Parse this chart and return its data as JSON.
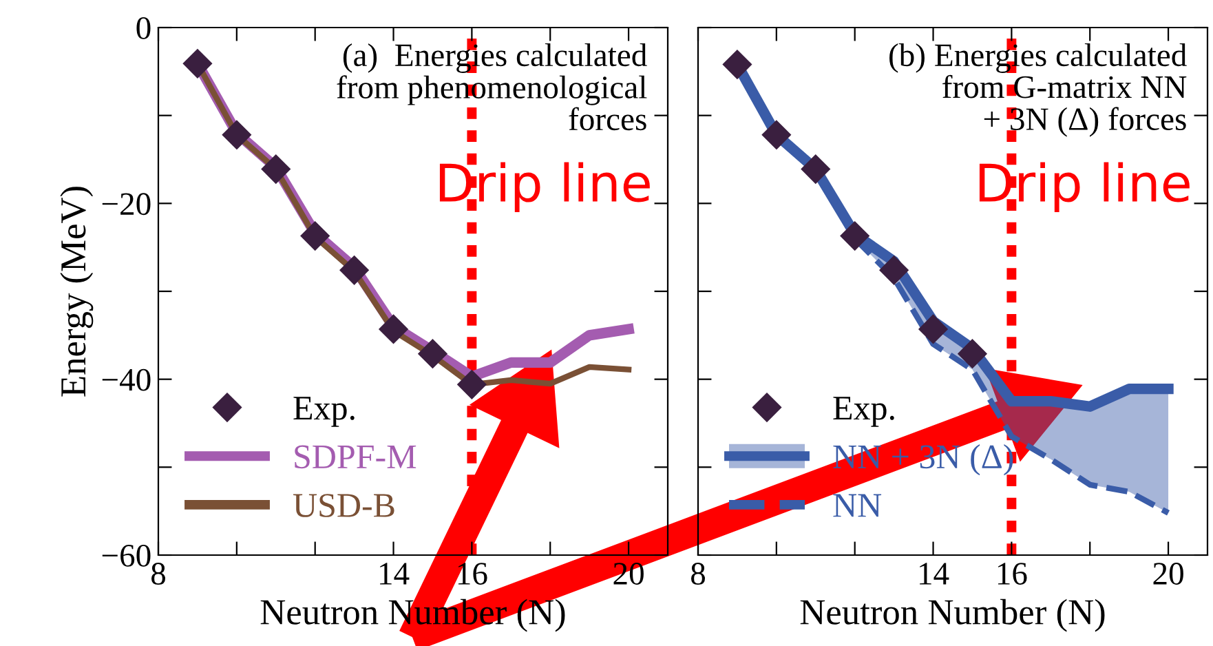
{
  "chart_data": [
    {
      "type": "line",
      "xlabel": "Neutron Number (N)",
      "ylabel": "Energy (MeV)",
      "xlim": [
        8,
        21
      ],
      "xticks": [
        8,
        {
          "value": 10,
          "label": null
        },
        {
          "value": 12,
          "label": null
        },
        14,
        16,
        {
          "value": 18,
          "label": null
        },
        20
      ],
      "ylim": [
        -60,
        0
      ],
      "yticks": [
        {
          "value": -60,
          "label": "−60"
        },
        {
          "value": -50,
          "label": null
        },
        {
          "value": -40,
          "label": "−40"
        },
        {
          "value": -30,
          "label": null
        },
        {
          "value": -20,
          "label": "−20"
        },
        {
          "value": -10,
          "label": null
        },
        0
      ],
      "legend": "bottom left",
      "grid": false,
      "annotations": [
        "(a)  Energies calculated\nfrom phenomenological\nforces",
        "Drip line"
      ],
      "ref_lines": [
        {
          "axis": "x",
          "value": 16,
          "color": "#ff0000",
          "line_style": "dotted"
        }
      ],
      "series": [
        {
          "name": "Exp.",
          "type": "scatter",
          "marker": "diamond",
          "color": "#3a1f3f",
          "x": [
            9,
            10,
            11,
            12,
            13,
            14,
            15,
            16
          ],
          "values": [
            -4.1,
            -12.2,
            -16.1,
            -23.7,
            -27.6,
            -34.3,
            -37.1,
            -40.6
          ]
        },
        {
          "name": "SDPF-M",
          "color": "#a45cb0",
          "line_style": "solid",
          "x": [
            9,
            10,
            11,
            12,
            13,
            14,
            15,
            16,
            17,
            18,
            19,
            20
          ],
          "values": [
            -4.1,
            -12.0,
            -15.9,
            -23.4,
            -27.3,
            -34.0,
            -36.8,
            -39.7,
            -38.1,
            -38.1,
            -35.0,
            -34.3
          ]
        },
        {
          "name": "USD-B",
          "color": "#7a5035",
          "line_style": "solid",
          "x": [
            9,
            10,
            11,
            12,
            13,
            14,
            15,
            16,
            17,
            18,
            19,
            20
          ],
          "values": [
            -4.1,
            -12.2,
            -16.1,
            -23.8,
            -27.7,
            -34.5,
            -37.3,
            -40.6,
            -40.1,
            -40.5,
            -38.6,
            -38.9
          ]
        }
      ]
    },
    {
      "type": "line",
      "xlabel": "Neutron Number (N)",
      "xlim": [
        8,
        21
      ],
      "xticks": [
        8,
        {
          "value": 10,
          "label": null
        },
        {
          "value": 12,
          "label": null
        },
        14,
        16,
        {
          "value": 18,
          "label": null
        },
        20
      ],
      "ylim": [
        -60,
        0
      ],
      "yticks": [
        -60,
        -50,
        -40,
        -30,
        -20,
        -10,
        0
      ],
      "tick_labels": "x",
      "legend": "bottom left",
      "grid": false,
      "annotations": [
        "(b) Energies calculated\nfrom G-matrix NN\n+ 3N (Δ) forces",
        "Drip line"
      ],
      "ref_lines": [
        {
          "axis": "x",
          "value": 16,
          "color": "#ff0000",
          "line_style": "dotted"
        }
      ],
      "series": [
        {
          "name": "Exp.",
          "type": "scatter",
          "marker": "diamond",
          "color": "#3a1f3f",
          "x": [
            9,
            10,
            11,
            12,
            13,
            14,
            15
          ],
          "values": [
            -4.2,
            -12.2,
            -16.1,
            -23.7,
            -27.6,
            -34.3,
            -37.1
          ]
        },
        {
          "name": "NN + 3N (Δ)",
          "color": "#3a5ca8",
          "line_style": "solid",
          "x": [
            9,
            10,
            11,
            12,
            13,
            14,
            15,
            16,
            17,
            18,
            19,
            20
          ],
          "values": [
            -4.2,
            -12.2,
            -16.1,
            -23.5,
            -26.6,
            -33.4,
            -36.5,
            -42.5,
            -42.5,
            -43.1,
            -41.1,
            -41.1
          ],
          "lower": [
            -4.2,
            -12.2,
            -16.1,
            -24.0,
            -28.5,
            -36.0,
            -38.9,
            -46.5,
            -49.1,
            -52.0,
            -52.8,
            -55.2
          ],
          "upper": [
            -4.2,
            -12.2,
            -16.1,
            -23.5,
            -26.6,
            -33.4,
            -36.5,
            -42.5,
            -42.5,
            -43.1,
            -41.1,
            -41.1
          ]
        },
        {
          "name": "NN",
          "color": "#3a5ca8",
          "line_style": "dashed",
          "x": [
            9,
            10,
            11,
            12,
            13,
            14,
            15,
            16,
            17,
            18,
            19,
            20
          ],
          "values": [
            -4.2,
            -12.2,
            -16.1,
            -24.0,
            -28.5,
            -36.0,
            -38.9,
            -46.5,
            -49.1,
            -52.0,
            -52.8,
            -55.2
          ]
        }
      ]
    }
  ]
}
